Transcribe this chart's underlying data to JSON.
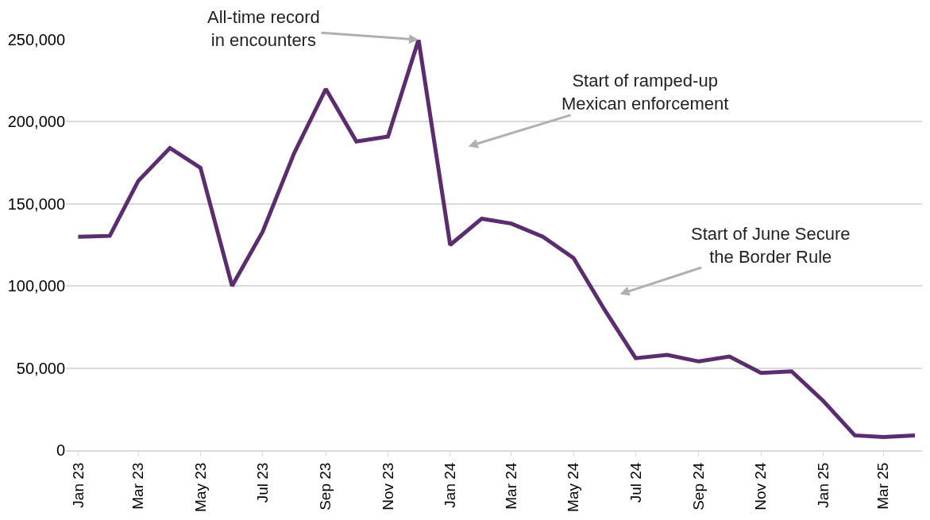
{
  "chart_data": {
    "type": "line",
    "x": [
      "2023-01",
      "2023-02",
      "2023-03",
      "2023-04",
      "2023-05",
      "2023-06",
      "2023-07",
      "2023-08",
      "2023-09",
      "2023-10",
      "2023-11",
      "2023-12",
      "2024-01",
      "2024-02",
      "2024-03",
      "2024-04",
      "2024-05",
      "2024-06",
      "2024-07",
      "2024-08",
      "2024-09",
      "2024-10",
      "2024-11",
      "2024-12",
      "2025-01",
      "2025-02",
      "2025-03",
      "2025-04"
    ],
    "series": [
      {
        "color": "#5c2d6e",
        "values": [
          130000,
          130500,
          164000,
          184000,
          172000,
          100000,
          133000,
          181000,
          220000,
          188000,
          191000,
          250000,
          125000,
          141000,
          138000,
          130000,
          117000,
          85000,
          56000,
          58000,
          54000,
          57000,
          47000,
          48000,
          30000,
          9000,
          8000,
          9000
        ]
      }
    ],
    "xlim": [
      "2022-12-20",
      "2025-04-08"
    ],
    "xticks": [
      {
        "value": "2023-01",
        "label": "Jan 23"
      },
      {
        "value": "2023-03",
        "label": "Mar 23"
      },
      {
        "value": "2023-05",
        "label": "May 23"
      },
      {
        "value": "2023-07",
        "label": "Jul 23"
      },
      {
        "value": "2023-09",
        "label": "Sep 23"
      },
      {
        "value": "2023-11",
        "label": "Nov 23"
      },
      {
        "value": "2024-01",
        "label": "Jan 24"
      },
      {
        "value": "2024-03",
        "label": "Mar 24"
      },
      {
        "value": "2024-05",
        "label": "May 24"
      },
      {
        "value": "2024-07",
        "label": "Jul 24"
      },
      {
        "value": "2024-09",
        "label": "Sep 24"
      },
      {
        "value": "2024-11",
        "label": "Nov 24"
      },
      {
        "value": "2025-01",
        "label": "Jan 25"
      },
      {
        "value": "2025-03",
        "label": "Mar 25"
      }
    ],
    "ylim": [
      0,
      250000
    ],
    "yticks": [
      0,
      {
        "value": 50000,
        "label": "50,000"
      },
      {
        "value": 100000,
        "label": "100,000"
      },
      {
        "value": 150000,
        "label": "150,000"
      },
      {
        "value": 200000,
        "label": "200,000"
      },
      {
        "value": 250000,
        "label": "250,000"
      }
    ],
    "annotations": [
      {
        "text": "All-time record\nin encounters",
        "x": "2023-12",
        "y": 250000
      },
      "Start of ramped-up\nMexican enforcement",
      "Start of June Secure\nthe Border Rule"
    ],
    "grid": "y",
    "marker": "none",
    "line_style": "solid"
  }
}
